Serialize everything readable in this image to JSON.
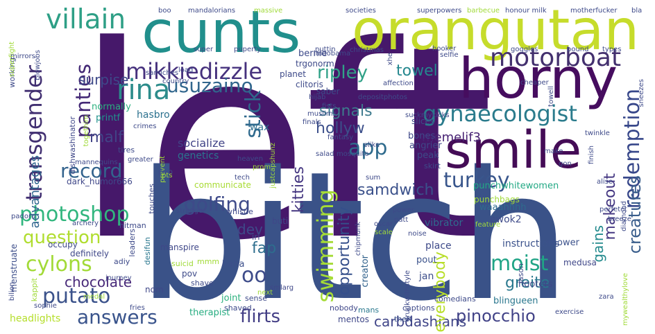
{
  "words": [
    "left",
    "bitch",
    "cunts",
    "orangutan",
    "horny",
    "smile",
    "villain",
    "mikkiedizzle",
    "motorboat",
    "rina",
    "transgender",
    "panties",
    "usuzaino",
    "gynaecologist",
    "redemption",
    "app",
    "hollyw",
    "stick",
    "signals",
    "ripley",
    "memelif3",
    "malf",
    "record",
    "turkey",
    "photoshop",
    "golfing",
    "question",
    "swimming",
    "moist",
    "cylons",
    "oo",
    "putato",
    "answers",
    "flirts",
    "pinocchio",
    "carbdashians",
    "chocolate",
    "fap",
    "opportunity",
    "gains",
    "creatures",
    "greite",
    "everybody",
    "samdwich",
    "makeout",
    "kitties",
    "advantages",
    "surpise",
    "towel",
    "dev",
    "socialize",
    "genetics",
    "normally",
    "hasbro",
    "printf",
    "dishwashinator",
    "wax",
    "bones",
    "angrier",
    "punchbags",
    "punchwhitewomen",
    "waaahhhh",
    "ewok2",
    "vibrator",
    "instructions",
    "blingueen",
    "hooters",
    "shower",
    "place",
    "jan",
    "pout",
    "creator",
    "haha",
    "pov",
    "nom",
    "joint",
    "therapist",
    "headlights",
    "menstruate",
    "definitely",
    "occupy",
    "dark_humor666",
    "communicate",
    "buti",
    "irl",
    "jason",
    "medusa",
    "mentos",
    "mmm",
    "adiy",
    "leaders",
    "desifun",
    "manspire",
    "suicid",
    "comedians",
    "captions",
    "theft",
    "nobody",
    "mans",
    "drunkwithstyle",
    "smlarg",
    "sense",
    "shaved",
    "next",
    "shave",
    "kappit",
    "fries",
    "sophie",
    "bilion",
    "medal",
    "journey",
    "archery",
    "padoru",
    "touches",
    "hitman",
    "stranger",
    "whistle",
    "tech",
    "prom",
    "heaven",
    "chipmunk",
    "mosquito",
    "olike",
    "salad",
    "sum",
    "power",
    "patt",
    "oscar",
    "scale",
    "noise",
    "feature",
    "breeze",
    "alise",
    "perfetct",
    "diamond",
    "finish",
    "gon",
    "make",
    "twinkle",
    "sneezes",
    "towell",
    "goggles",
    "bound",
    "types",
    "cheaper",
    "selfie",
    "superpowers",
    "barbecue",
    "honour milk",
    "motherfucker",
    "bla",
    "boo",
    "mandalorians",
    "massive",
    "societies",
    "bernie",
    "trgonorm",
    "nuttin",
    "planet",
    "lmaobama",
    "christmas",
    "xhe",
    "hooker",
    "working",
    "mirrors",
    "blowjobs",
    "superfight",
    "super",
    "puperty",
    "load",
    "country",
    "samiches",
    "clitoris",
    "saber",
    "affection",
    "hijab",
    "depositphotos",
    "fists",
    "muslims",
    "suckmykicks",
    "fantasy",
    "finals",
    "slices",
    "peak",
    "skirt",
    "togethim",
    "crimes",
    "greater",
    "mannequins",
    "tires",
    "prevent",
    "pixo",
    "justcapshunz",
    "zara",
    "exercise",
    "mywealthylove",
    "pts"
  ]
}
